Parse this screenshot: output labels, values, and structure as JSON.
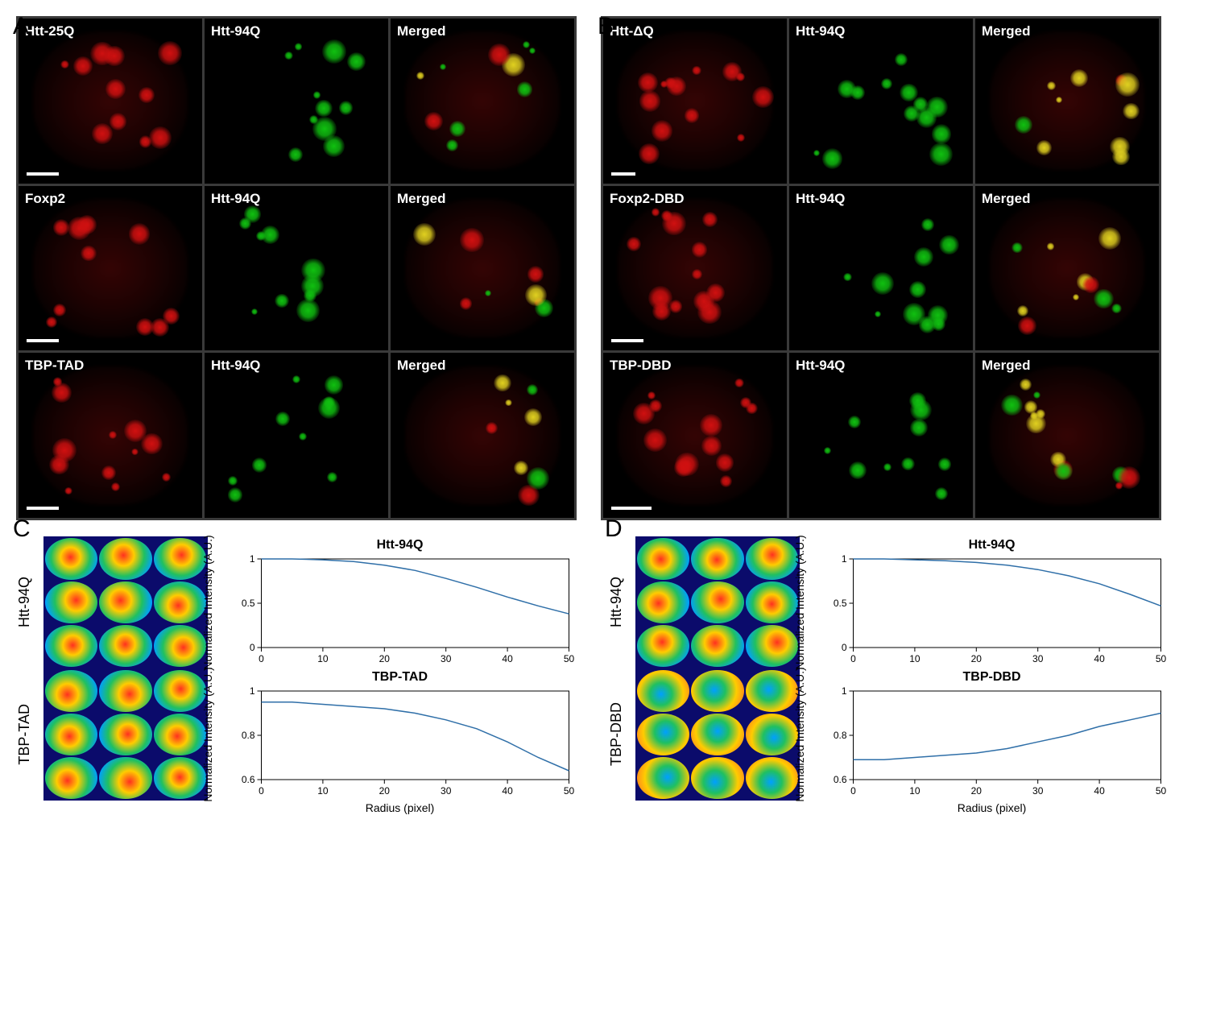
{
  "panels": {
    "A": {
      "letter": "A",
      "grid": [
        [
          {
            "label": "Htt-25Q",
            "channel": "red",
            "scalebar": 40
          },
          {
            "label": "Htt-94Q",
            "channel": "green"
          },
          {
            "label": "Merged",
            "channel": "merge"
          }
        ],
        [
          {
            "label": "Foxp2",
            "channel": "red",
            "scalebar": 40
          },
          {
            "label": "Htt-94Q",
            "channel": "green"
          },
          {
            "label": "Merged",
            "channel": "merge"
          }
        ],
        [
          {
            "label": "TBP-TAD",
            "channel": "red",
            "scalebar": 40
          },
          {
            "label": "Htt-94Q",
            "channel": "green"
          },
          {
            "label": "Merged",
            "channel": "merge"
          }
        ]
      ]
    },
    "B": {
      "letter": "B",
      "grid": [
        [
          {
            "label": "Htt-ΔQ",
            "channel": "red",
            "scalebar": 30
          },
          {
            "label": "Htt-94Q",
            "channel": "green"
          },
          {
            "label": "Merged",
            "channel": "merge"
          }
        ],
        [
          {
            "label": "Foxp2-DBD",
            "channel": "red",
            "scalebar": 40
          },
          {
            "label": "Htt-94Q",
            "channel": "green"
          },
          {
            "label": "Merged",
            "channel": "merge"
          }
        ],
        [
          {
            "label": "TBP-DBD",
            "channel": "red",
            "scalebar": 50
          },
          {
            "label": "Htt-94Q",
            "channel": "green"
          },
          {
            "label": "Merged",
            "channel": "merge"
          }
        ]
      ]
    }
  },
  "charts": {
    "C": {
      "letter": "C",
      "rows": [
        {
          "row_label": "Htt-94Q",
          "heatmap_style": "centered",
          "chart": {
            "title": "Htt-94Q",
            "ylabel": "Normalized Intensity (A.U.)",
            "xlabel": "",
            "xlim": [
              0,
              50
            ],
            "xtick_step": 10,
            "ylim": [
              0,
              1
            ],
            "yticks": [
              0,
              0.5,
              1
            ],
            "line_color": "#2f6fa8",
            "data_x": [
              0,
              5,
              10,
              15,
              20,
              25,
              30,
              35,
              40,
              45,
              50
            ],
            "data_y": [
              1.0,
              1.0,
              0.99,
              0.97,
              0.93,
              0.87,
              0.78,
              0.68,
              0.57,
              0.47,
              0.38
            ]
          }
        },
        {
          "row_label": "TBP-TAD",
          "heatmap_style": "centered",
          "chart": {
            "title": "TBP-TAD",
            "ylabel": "Normalized Intensity (A.U.)",
            "xlabel": "Radius (pixel)",
            "xlim": [
              0,
              50
            ],
            "xtick_step": 10,
            "ylim": [
              0.6,
              1
            ],
            "yticks": [
              0.6,
              0.8,
              1
            ],
            "line_color": "#2f6fa8",
            "data_x": [
              0,
              5,
              10,
              15,
              20,
              25,
              30,
              35,
              40,
              45,
              50
            ],
            "data_y": [
              0.95,
              0.95,
              0.94,
              0.93,
              0.92,
              0.9,
              0.87,
              0.83,
              0.77,
              0.7,
              0.64
            ]
          }
        }
      ]
    },
    "D": {
      "letter": "D",
      "rows": [
        {
          "row_label": "Htt-94Q",
          "heatmap_style": "centered",
          "chart": {
            "title": "Htt-94Q",
            "ylabel": "Normalized Intensity (A.U.)",
            "xlabel": "",
            "xlim": [
              0,
              50
            ],
            "xtick_step": 10,
            "ylim": [
              0,
              1
            ],
            "yticks": [
              0,
              0.5,
              1
            ],
            "line_color": "#2f6fa8",
            "data_x": [
              0,
              5,
              10,
              15,
              20,
              25,
              30,
              35,
              40,
              45,
              50
            ],
            "data_y": [
              1.0,
              1.0,
              0.99,
              0.98,
              0.96,
              0.93,
              0.88,
              0.81,
              0.72,
              0.6,
              0.47
            ]
          }
        },
        {
          "row_label": "TBP-DBD",
          "heatmap_style": "inverted",
          "chart": {
            "title": "TBP-DBD",
            "ylabel": "Normalized Intensity (A.U.)",
            "xlabel": "Radius (pixel)",
            "xlim": [
              0,
              50
            ],
            "xtick_step": 10,
            "ylim": [
              0.6,
              1
            ],
            "yticks": [
              0.6,
              0.8,
              1
            ],
            "line_color": "#2f6fa8",
            "data_x": [
              0,
              5,
              10,
              15,
              20,
              25,
              30,
              35,
              40,
              45,
              50
            ],
            "data_y": [
              0.69,
              0.69,
              0.7,
              0.71,
              0.72,
              0.74,
              0.77,
              0.8,
              0.84,
              0.87,
              0.9
            ]
          }
        }
      ]
    }
  },
  "colors": {
    "red_channel": "#d01010",
    "green_channel": "#10c010",
    "background": "#000000",
    "panel_border": "#3a3a3a",
    "heatmap_bg": "#0b0b6b",
    "axis": "#000000"
  },
  "typography": {
    "panel_letter_fontsize": 30,
    "cell_label_fontsize": 17,
    "chart_title_fontsize": 16,
    "axis_label_fontsize": 14,
    "tick_fontsize": 12
  }
}
